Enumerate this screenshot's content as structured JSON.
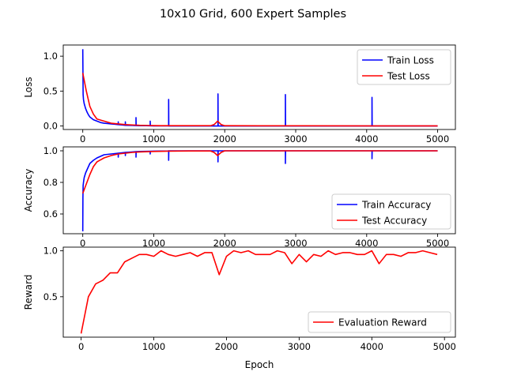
{
  "figure_title": "10x10 Grid, 600 Expert Samples",
  "colors": {
    "blue": "#0000ff",
    "red": "#ff0000"
  },
  "chart_data": [
    {
      "type": "line",
      "ylabel": "Loss",
      "xlabel": "",
      "xlim": [
        -275,
        5250
      ],
      "ylim": [
        -0.05,
        1.16
      ],
      "x_ticks": [
        0,
        1000,
        2000,
        3000,
        4000,
        5000
      ],
      "y_ticks": [
        0.0,
        0.5,
        1.0
      ],
      "x_tick_labels": [
        "0",
        "1000",
        "2000",
        "3000",
        "4000",
        "5000"
      ],
      "y_tick_labels": [
        "0.0",
        "0.5",
        "1.0"
      ],
      "legend_position": "upper right",
      "series": [
        {
          "name": "Train Loss",
          "color": "#0000ff",
          "x": [
            0,
            5,
            10,
            20,
            40,
            60,
            80,
            100,
            150,
            200,
            250,
            300,
            350,
            400,
            450,
            500,
            500,
            502,
            550,
            600,
            600,
            602,
            700,
            750,
            750,
            752,
            800,
            900,
            950,
            950,
            952,
            1000,
            1200,
            1210,
            1210,
            1212,
            1300,
            1500,
            1800,
            1900,
            1905,
            1905,
            1907,
            2000,
            2500,
            2850,
            2855,
            2855,
            2857,
            3000,
            3500,
            4000,
            4070,
            4075,
            4075,
            4077,
            4500,
            5000
          ],
          "y": [
            1.1,
            0.45,
            0.38,
            0.32,
            0.25,
            0.2,
            0.16,
            0.13,
            0.09,
            0.07,
            0.05,
            0.04,
            0.035,
            0.03,
            0.025,
            0.02,
            0.06,
            0.02,
            0.015,
            0.01,
            0.06,
            0.01,
            0.008,
            0.006,
            0.12,
            0.006,
            0.005,
            0.004,
            0.003,
            0.07,
            0.003,
            0.002,
            0.002,
            0.0,
            0.38,
            0.0,
            0.0,
            0.0,
            0.0,
            0.0,
            0.0,
            0.46,
            0.0,
            0.0,
            0.0,
            0.0,
            0.0,
            0.45,
            0.0,
            0.0,
            0.0,
            0.0,
            0.0,
            0.0,
            0.41,
            0.0,
            0.0,
            0.0
          ]
        },
        {
          "name": "Test Loss",
          "color": "#ff0000",
          "x": [
            0,
            50,
            100,
            150,
            200,
            300,
            400,
            500,
            600,
            700,
            800,
            900,
            1000,
            1100,
            1200,
            1500,
            1800,
            1850,
            1900,
            1950,
            2000,
            2500,
            3000,
            4000,
            5000
          ],
          "y": [
            0.76,
            0.5,
            0.28,
            0.17,
            0.1,
            0.07,
            0.04,
            0.03,
            0.02,
            0.015,
            0.01,
            0.008,
            0.006,
            0.005,
            0.005,
            0.004,
            0.004,
            0.02,
            0.07,
            0.02,
            0.004,
            0.003,
            0.003,
            0.002,
            0.002
          ]
        }
      ]
    },
    {
      "type": "line",
      "ylabel": "Accuracy",
      "xlabel": "",
      "xlim": [
        -275,
        5250
      ],
      "ylim": [
        0.475,
        1.025
      ],
      "x_ticks": [
        0,
        1000,
        2000,
        3000,
        4000,
        5000
      ],
      "y_ticks": [
        0.6,
        0.8,
        1.0
      ],
      "x_tick_labels": [
        "0",
        "1000",
        "2000",
        "3000",
        "4000",
        "5000"
      ],
      "y_tick_labels": [
        "0.6",
        "0.8",
        "1.0"
      ],
      "legend_position": "lower right",
      "series": [
        {
          "name": "Train Accuracy",
          "color": "#0000ff",
          "x": [
            0,
            2,
            5,
            10,
            20,
            40,
            60,
            80,
            100,
            150,
            200,
            250,
            300,
            400,
            500,
            500,
            502,
            600,
            600,
            602,
            700,
            750,
            750,
            752,
            800,
            950,
            950,
            952,
            1000,
            1200,
            1210,
            1210,
            1212,
            1500,
            1900,
            1905,
            1905,
            1907,
            2000,
            2500,
            2850,
            2855,
            2855,
            2857,
            3000,
            3500,
            4070,
            4075,
            4075,
            4077,
            4500,
            5000
          ],
          "y": [
            0.49,
            0.7,
            0.78,
            0.8,
            0.83,
            0.86,
            0.88,
            0.9,
            0.92,
            0.94,
            0.955,
            0.965,
            0.975,
            0.98,
            0.985,
            0.96,
            0.985,
            0.99,
            0.97,
            0.99,
            0.993,
            0.995,
            0.96,
            0.995,
            0.996,
            0.997,
            0.98,
            0.997,
            0.998,
            0.999,
            1.0,
            0.94,
            1.0,
            1.0,
            1.0,
            1.0,
            0.93,
            1.0,
            1.0,
            1.0,
            1.0,
            1.0,
            0.92,
            1.0,
            1.0,
            1.0,
            1.0,
            1.0,
            0.95,
            1.0,
            1.0,
            1.0
          ]
        },
        {
          "name": "Test Accuracy",
          "color": "#ff0000",
          "x": [
            0,
            50,
            100,
            150,
            200,
            300,
            400,
            500,
            600,
            700,
            800,
            1000,
            1200,
            1500,
            1800,
            1850,
            1900,
            1950,
            2000,
            2500,
            3000,
            4000,
            5000
          ],
          "y": [
            0.73,
            0.79,
            0.85,
            0.9,
            0.93,
            0.955,
            0.97,
            0.98,
            0.985,
            0.99,
            0.993,
            0.996,
            0.998,
            0.999,
            0.999,
            0.99,
            0.97,
            0.99,
            1.0,
            1.0,
            1.0,
            1.0,
            1.0
          ]
        }
      ]
    },
    {
      "type": "line",
      "ylabel": "Reward",
      "xlabel": "Epoch",
      "xlim": [
        -246,
        5150
      ],
      "ylim": [
        0.06,
        1.04
      ],
      "x_ticks": [
        0,
        1000,
        2000,
        3000,
        4000,
        5000
      ],
      "y_ticks": [
        0.5,
        1.0
      ],
      "x_tick_labels": [
        "0",
        "1000",
        "2000",
        "3000",
        "4000",
        "5000"
      ],
      "y_tick_labels": [
        "0.5",
        "1.0"
      ],
      "legend_position": "lower right",
      "series": [
        {
          "name": "Evaluation Reward",
          "color": "#ff0000",
          "x": [
            0,
            100,
            200,
            300,
            400,
            500,
            600,
            700,
            800,
            900,
            1000,
            1100,
            1200,
            1300,
            1400,
            1500,
            1600,
            1700,
            1800,
            1900,
            2000,
            2100,
            2200,
            2300,
            2400,
            2500,
            2600,
            2700,
            2800,
            2900,
            3000,
            3100,
            3200,
            3300,
            3400,
            3500,
            3600,
            3700,
            3800,
            3900,
            4000,
            4100,
            4200,
            4300,
            4400,
            4500,
            4600,
            4700,
            4800,
            4900
          ],
          "y": [
            0.1,
            0.5,
            0.64,
            0.68,
            0.76,
            0.76,
            0.88,
            0.92,
            0.96,
            0.96,
            0.94,
            1.0,
            0.96,
            0.94,
            0.96,
            0.98,
            0.94,
            0.98,
            0.98,
            0.74,
            0.94,
            1.0,
            0.98,
            1.0,
            0.96,
            0.96,
            0.96,
            1.0,
            0.98,
            0.86,
            0.96,
            0.88,
            0.96,
            0.94,
            1.0,
            0.96,
            0.98,
            0.98,
            0.96,
            0.96,
            1.0,
            0.86,
            0.96,
            0.96,
            0.94,
            0.98,
            0.98,
            1.0,
            0.98,
            0.96
          ]
        }
      ]
    }
  ]
}
